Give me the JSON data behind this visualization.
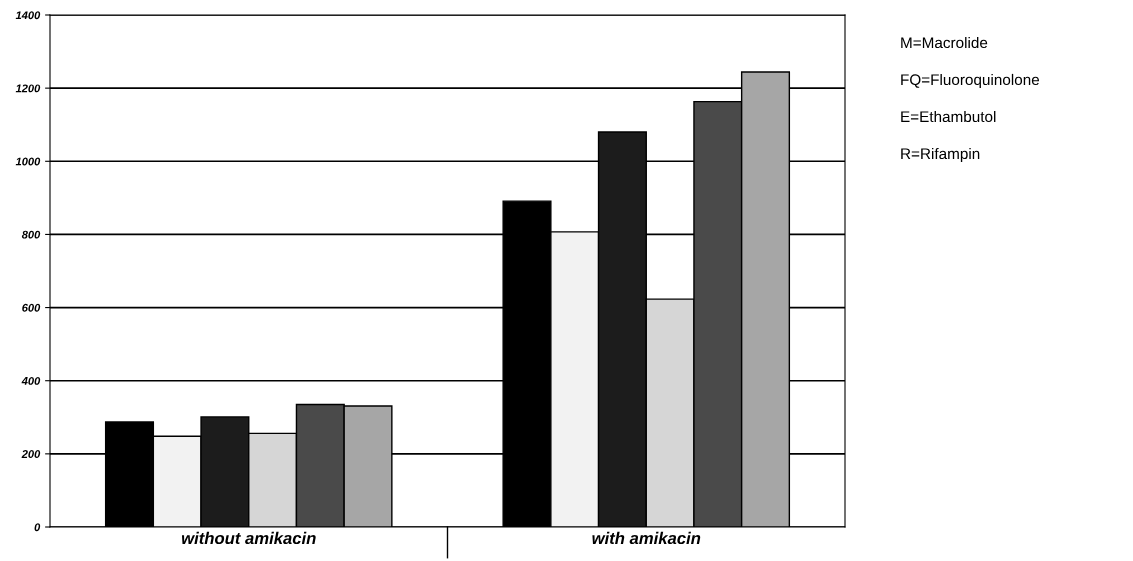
{
  "chart_data": {
    "type": "bar",
    "categories": [
      "without amikacin",
      "with amikacin"
    ],
    "series": [
      {
        "color": "#000000",
        "values": [
          287,
          891
        ]
      },
      {
        "color": "#f2f2f2",
        "values": [
          248,
          807
        ]
      },
      {
        "color": "#1c1c1c",
        "values": [
          301,
          1080
        ]
      },
      {
        "color": "#d6d6d6",
        "values": [
          256,
          623
        ]
      },
      {
        "color": "#4a4a4a",
        "values": [
          335,
          1163
        ]
      },
      {
        "color": "#a6a6a6",
        "values": [
          331,
          1244
        ]
      }
    ],
    "ylim": [
      0,
      1400
    ],
    "yticks": [
      0,
      200,
      400,
      600,
      800,
      1000,
      1200,
      1400
    ],
    "grid": "y",
    "annotations": [
      "M=Macrolide",
      "FQ=Fluoroquinolone",
      "E=Ethambutol",
      "R=Rifampin"
    ]
  }
}
